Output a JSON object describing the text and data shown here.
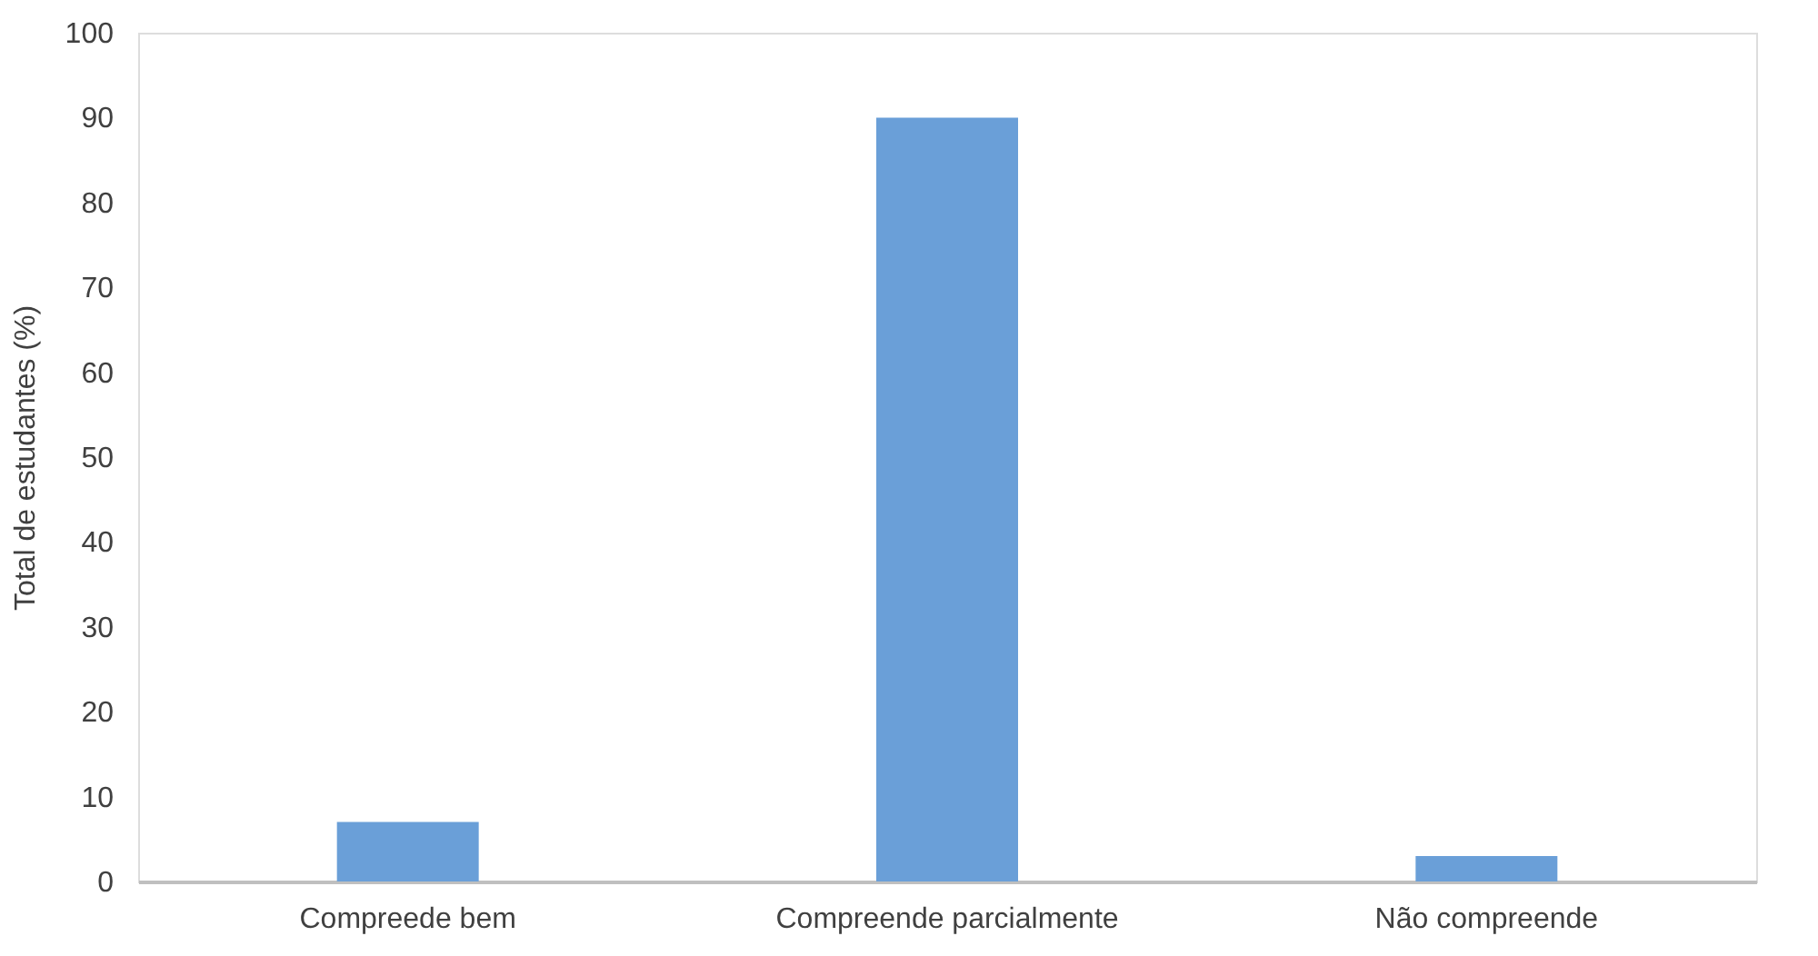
{
  "chart_data": {
    "type": "bar",
    "ylabel": "Total de estudantes (%)",
    "categories": [
      "Compreede bem",
      "Compreende parcialmente",
      "Não compreende"
    ],
    "values": [
      7,
      90,
      3
    ],
    "color": "#6a9fd8",
    "ylim": [
      0,
      100
    ],
    "yticks": [
      0,
      10,
      20,
      30,
      40,
      50,
      60,
      70,
      80,
      90,
      100
    ],
    "grid": false
  }
}
